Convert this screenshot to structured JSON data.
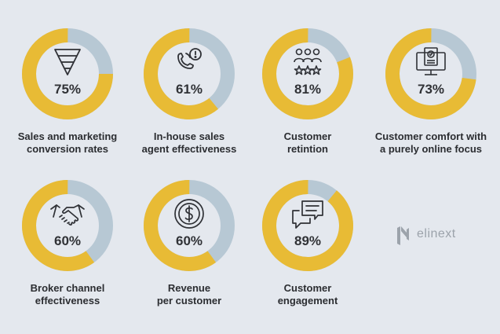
{
  "chart_data": {
    "type": "donut",
    "colors": {
      "filled": "#e8bb35",
      "remaining": "#b7c8d4"
    },
    "items": [
      {
        "label": "Sales and marketing\nconversion rates",
        "value": 75,
        "display": "75%",
        "icon": "funnel-icon"
      },
      {
        "label": "In-house sales\nagent effectiveness",
        "value": 61,
        "display": "61%",
        "icon": "phone-alert-icon"
      },
      {
        "label": "Customer\nretintion",
        "value": 81,
        "display": "81%",
        "icon": "customers-rating-icon"
      },
      {
        "label": "Customer comfort with\na purely online focus",
        "value": 73,
        "display": "73%",
        "icon": "online-verified-icon"
      },
      {
        "label": "Broker channel\neffectiveness",
        "value": 60,
        "display": "60%",
        "icon": "handshake-icon"
      },
      {
        "label": "Revenue\nper customer",
        "value": 60,
        "display": "60%",
        "icon": "dollar-coin-icon"
      },
      {
        "label": "Customer\nengagement",
        "value": 89,
        "display": "89%",
        "icon": "chat-bubbles-icon"
      }
    ]
  },
  "brand": {
    "name": "elinext",
    "logo_icon": "elinext-logo-icon"
  }
}
